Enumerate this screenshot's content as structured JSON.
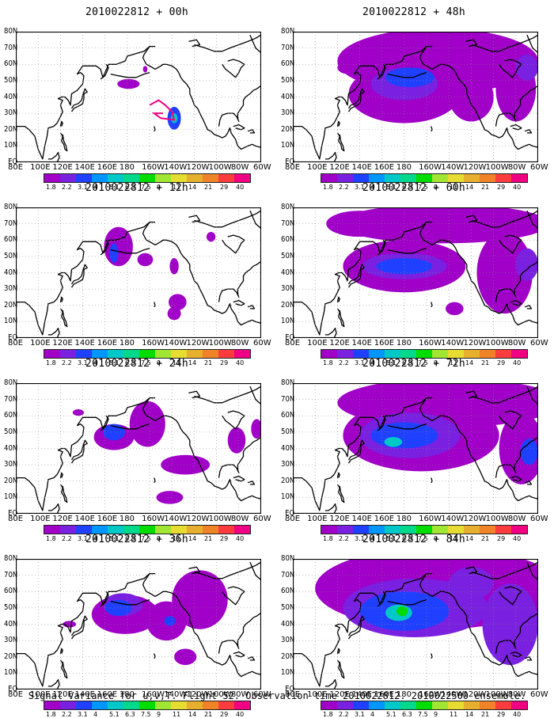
{
  "panels": [
    {
      "title": "2010022812 + 00h",
      "blobs": [
        {
          "lon": 181,
          "lat": 48,
          "rx": 10,
          "ry": 3,
          "level": 0
        },
        {
          "lon": 196,
          "lat": 57,
          "rx": 2,
          "ry": 2,
          "level": 0
        },
        {
          "lon": 222,
          "lat": 27,
          "rx": 6,
          "ry": 7,
          "level": 2
        },
        {
          "lon": 222,
          "lat": 27,
          "rx": 3,
          "ry": 3,
          "level": 4
        }
      ],
      "contour_pink": [
        [
          200,
          35
        ],
        [
          208,
          38
        ],
        [
          214,
          35
        ],
        [
          220,
          31
        ],
        [
          222,
          26
        ],
        [
          210,
          27
        ],
        [
          204,
          30
        ],
        [
          212,
          30
        ]
      ]
    },
    {
      "title": "2010022812 + 12h",
      "blobs": [
        {
          "lon": 172,
          "lat": 56,
          "rx": 13,
          "ry": 12,
          "level": 0
        },
        {
          "lon": 168,
          "lat": 52,
          "rx": 4,
          "ry": 6,
          "level": 2
        },
        {
          "lon": 196,
          "lat": 48,
          "rx": 7,
          "ry": 4,
          "level": 0
        },
        {
          "lon": 222,
          "lat": 44,
          "rx": 4,
          "ry": 5,
          "level": 0
        },
        {
          "lon": 225,
          "lat": 22,
          "rx": 8,
          "ry": 5,
          "level": 0
        },
        {
          "lon": 222,
          "lat": 15,
          "rx": 6,
          "ry": 4,
          "level": 0
        },
        {
          "lon": 255,
          "lat": 62,
          "rx": 4,
          "ry": 3,
          "level": 0
        }
      ]
    },
    {
      "title": "2010022812 + 24h",
      "blobs": [
        {
          "lon": 168,
          "lat": 47,
          "rx": 18,
          "ry": 8,
          "level": 0
        },
        {
          "lon": 168,
          "lat": 50,
          "rx": 10,
          "ry": 5,
          "level": 2
        },
        {
          "lon": 198,
          "lat": 55,
          "rx": 16,
          "ry": 14,
          "level": 0
        },
        {
          "lon": 232,
          "lat": 30,
          "rx": 22,
          "ry": 6,
          "level": 0
        },
        {
          "lon": 218,
          "lat": 10,
          "rx": 12,
          "ry": 4,
          "level": 0
        },
        {
          "lon": 278,
          "lat": 45,
          "rx": 8,
          "ry": 8,
          "level": 0
        },
        {
          "lon": 296,
          "lat": 52,
          "rx": 5,
          "ry": 6,
          "level": 0
        },
        {
          "lon": 136,
          "lat": 62,
          "rx": 5,
          "ry": 2,
          "level": 0
        }
      ]
    },
    {
      "title": "2010022812 + 36h",
      "blobs": [
        {
          "lon": 178,
          "lat": 46,
          "rx": 30,
          "ry": 12,
          "level": 0
        },
        {
          "lon": 176,
          "lat": 52,
          "rx": 18,
          "ry": 7,
          "level": 1
        },
        {
          "lon": 172,
          "lat": 50,
          "rx": 12,
          "ry": 5,
          "level": 2
        },
        {
          "lon": 215,
          "lat": 42,
          "rx": 18,
          "ry": 12,
          "level": 0
        },
        {
          "lon": 218,
          "lat": 42,
          "rx": 5,
          "ry": 3,
          "level": 2
        },
        {
          "lon": 245,
          "lat": 55,
          "rx": 25,
          "ry": 18,
          "level": 0
        },
        {
          "lon": 232,
          "lat": 20,
          "rx": 10,
          "ry": 5,
          "level": 0
        },
        {
          "lon": 128,
          "lat": 40,
          "rx": 6,
          "ry": 2,
          "level": 0
        }
      ]
    },
    {
      "title": "2010022812 + 48h",
      "blobs": [
        {
          "lon": 210,
          "lat": 62,
          "rx": 90,
          "ry": 20,
          "level": 0
        },
        {
          "lon": 180,
          "lat": 42,
          "rx": 50,
          "ry": 18,
          "level": 0
        },
        {
          "lon": 180,
          "lat": 48,
          "rx": 30,
          "ry": 10,
          "level": 1
        },
        {
          "lon": 185,
          "lat": 52,
          "rx": 22,
          "ry": 6,
          "level": 2
        },
        {
          "lon": 240,
          "lat": 40,
          "rx": 20,
          "ry": 15,
          "level": 0
        },
        {
          "lon": 280,
          "lat": 45,
          "rx": 18,
          "ry": 20,
          "level": 0
        },
        {
          "lon": 290,
          "lat": 58,
          "rx": 10,
          "ry": 8,
          "level": 1
        },
        {
          "lon": 130,
          "lat": 58,
          "rx": 10,
          "ry": 4,
          "level": 0
        }
      ]
    },
    {
      "title": "2010022812 + 60h",
      "blobs": [
        {
          "lon": 215,
          "lat": 70,
          "rx": 95,
          "ry": 12,
          "level": 0
        },
        {
          "lon": 180,
          "lat": 44,
          "rx": 55,
          "ry": 16,
          "level": 0
        },
        {
          "lon": 180,
          "lat": 44,
          "rx": 38,
          "ry": 8,
          "level": 1
        },
        {
          "lon": 180,
          "lat": 44,
          "rx": 25,
          "ry": 5,
          "level": 2
        },
        {
          "lon": 270,
          "lat": 40,
          "rx": 25,
          "ry": 25,
          "level": 0
        },
        {
          "lon": 290,
          "lat": 45,
          "rx": 10,
          "ry": 10,
          "level": 1
        },
        {
          "lon": 140,
          "lat": 70,
          "rx": 30,
          "ry": 8,
          "level": 0
        },
        {
          "lon": 225,
          "lat": 18,
          "rx": 8,
          "ry": 4,
          "level": 0
        }
      ]
    },
    {
      "title": "2010022812 + 72h",
      "blobs": [
        {
          "lon": 220,
          "lat": 68,
          "rx": 100,
          "ry": 15,
          "level": 0
        },
        {
          "lon": 195,
          "lat": 48,
          "rx": 70,
          "ry": 22,
          "level": 0
        },
        {
          "lon": 185,
          "lat": 48,
          "rx": 45,
          "ry": 14,
          "level": 1
        },
        {
          "lon": 180,
          "lat": 48,
          "rx": 30,
          "ry": 8,
          "level": 2
        },
        {
          "lon": 170,
          "lat": 44,
          "rx": 8,
          "ry": 3,
          "level": 4
        },
        {
          "lon": 285,
          "lat": 40,
          "rx": 20,
          "ry": 22,
          "level": 0
        },
        {
          "lon": 292,
          "lat": 38,
          "rx": 8,
          "ry": 8,
          "level": 2
        }
      ]
    },
    {
      "title": "2010022812 + 84h",
      "blobs": [
        {
          "lon": 210,
          "lat": 62,
          "rx": 110,
          "ry": 25,
          "level": 0
        },
        {
          "lon": 190,
          "lat": 50,
          "rx": 65,
          "ry": 18,
          "level": 1
        },
        {
          "lon": 180,
          "lat": 48,
          "rx": 40,
          "ry": 12,
          "level": 2
        },
        {
          "lon": 175,
          "lat": 47,
          "rx": 12,
          "ry": 5,
          "level": 4
        },
        {
          "lon": 178,
          "lat": 48,
          "rx": 5,
          "ry": 3,
          "level": 6
        },
        {
          "lon": 275,
          "lat": 40,
          "rx": 25,
          "ry": 25,
          "level": 1
        },
        {
          "lon": 240,
          "lat": 65,
          "rx": 20,
          "ry": 10,
          "level": 1
        }
      ]
    }
  ],
  "lat_labels": [
    "80N",
    "70N",
    "60N",
    "50N",
    "40N",
    "30N",
    "20N",
    "10N",
    "EQ"
  ],
  "lon_labels": [
    "80E",
    "100E",
    "120E",
    "140E",
    "160E",
    "180",
    "160W",
    "140W",
    "120W",
    "100W",
    "80W",
    "60W"
  ],
  "colorbar": {
    "colors": [
      "#a000c8",
      "#7a20e0",
      "#2040ff",
      "#0096ff",
      "#00c8c8",
      "#00d88c",
      "#00dc00",
      "#a0e632",
      "#e6dc32",
      "#e6af2d",
      "#f08228",
      "#fa3c3c",
      "#f00082"
    ],
    "labels": [
      "1.8",
      "2.2",
      "3.1",
      "4",
      "5.1",
      "6.3",
      "7.5",
      "9",
      "11",
      "14",
      "21",
      "29",
      "40"
    ]
  },
  "footer": "Signal Variance for u,v,T. Flight 52. Observation time 2010022812. 2010022500 ensemble."
}
